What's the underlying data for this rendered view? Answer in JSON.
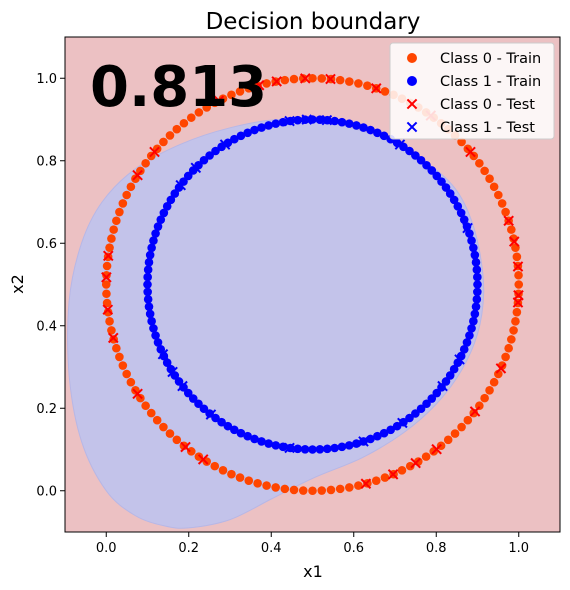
{
  "chart_data": {
    "type": "scatter",
    "title": "Decision boundary",
    "xlabel": "x1",
    "ylabel": "x2",
    "xlim": [
      -0.1,
      1.1
    ],
    "ylim": [
      -0.1,
      1.1
    ],
    "xticks": [
      "0.0",
      "0.2",
      "0.4",
      "0.6",
      "0.8",
      "1.0"
    ],
    "yticks": [
      "0.0",
      "0.2",
      "0.4",
      "0.6",
      "0.8",
      "1.0"
    ],
    "score_text": "0.813",
    "grid": false,
    "legend_position": "top-right",
    "background_region": {
      "label": "class 0 region",
      "color": "#ecc1c3"
    },
    "boundary_region": {
      "label": "class 1 region",
      "color": "#c3c3ea",
      "outline": [
        [
          0.2,
          -0.09
        ],
        [
          0.3,
          -0.07
        ],
        [
          0.4,
          -0.02
        ],
        [
          0.5,
          0.03
        ],
        [
          0.62,
          0.08
        ],
        [
          0.72,
          0.14
        ],
        [
          0.8,
          0.21
        ],
        [
          0.86,
          0.29
        ],
        [
          0.9,
          0.38
        ],
        [
          0.915,
          0.48
        ],
        [
          0.905,
          0.58
        ],
        [
          0.88,
          0.67
        ],
        [
          0.84,
          0.74
        ],
        [
          0.77,
          0.8
        ],
        [
          0.68,
          0.85
        ],
        [
          0.55,
          0.89
        ],
        [
          0.42,
          0.9
        ],
        [
          0.3,
          0.88
        ],
        [
          0.18,
          0.84
        ],
        [
          0.07,
          0.78
        ],
        [
          -0.01,
          0.7
        ],
        [
          -0.06,
          0.6
        ],
        [
          -0.09,
          0.46
        ],
        [
          -0.09,
          0.28
        ],
        [
          -0.06,
          0.12
        ],
        [
          0.0,
          0.0
        ],
        [
          0.07,
          -0.06
        ],
        [
          0.14,
          -0.085
        ]
      ]
    },
    "series": [
      {
        "name": "Class 0 - Train",
        "marker": "circle",
        "color": "#ff4500",
        "shape": "ring",
        "center": [
          0.5,
          0.5
        ],
        "radius": 0.5,
        "count": 140
      },
      {
        "name": "Class 1 - Train",
        "marker": "circle",
        "color": "#0000ff",
        "shape": "ring",
        "center": [
          0.5,
          0.5
        ],
        "radius": 0.4,
        "count": 140
      },
      {
        "name": "Class 0 - Test",
        "marker": "x",
        "color": "#ff0000",
        "shape": "ring",
        "center": [
          0.5,
          0.5
        ],
        "radius": 0.5,
        "angles_deg": [
          5,
          12,
          18,
          40,
          55,
          72,
          85,
          92,
          100,
          105,
          117,
          140,
          148,
          172,
          178,
          187,
          195,
          212,
          232,
          238,
          285,
          293,
          300,
          307,
          322,
          336,
          355,
          357
        ]
      },
      {
        "name": "Class 1 - Test",
        "marker": "x",
        "color": "#0000ff",
        "shape": "ring",
        "center": [
          0.5,
          0.5
        ],
        "radius": 0.4,
        "angles_deg": [
          20,
          58,
          85,
          92,
          98,
          122,
          135,
          143,
          205,
          212,
          218,
          232,
          262,
          288,
          303,
          322,
          333
        ]
      }
    ]
  }
}
